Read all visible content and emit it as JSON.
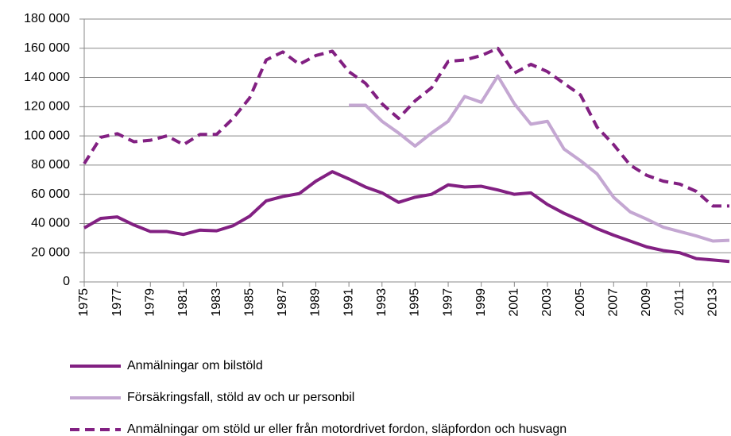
{
  "chart_data": {
    "type": "line",
    "x": [
      1975,
      1976,
      1977,
      1978,
      1979,
      1980,
      1981,
      1982,
      1983,
      1984,
      1985,
      1986,
      1987,
      1988,
      1989,
      1990,
      1991,
      1992,
      1993,
      1994,
      1995,
      1996,
      1997,
      1998,
      1999,
      2000,
      2001,
      2002,
      2003,
      2004,
      2005,
      2006,
      2007,
      2008,
      2009,
      2010,
      2011,
      2012,
      2013,
      2014
    ],
    "xlim": [
      1975,
      2014
    ],
    "xticks": [
      1975,
      1977,
      1979,
      1981,
      1983,
      1985,
      1987,
      1989,
      1991,
      1993,
      1995,
      1997,
      1999,
      2001,
      2003,
      2005,
      2007,
      2009,
      2011,
      2013
    ],
    "ylim": [
      0,
      180000
    ],
    "yticks": [
      0,
      {
        "value": 20000,
        "label": "20 000"
      },
      {
        "value": 40000,
        "label": "40 000"
      },
      {
        "value": 60000,
        "label": "60 000"
      },
      {
        "value": 80000,
        "label": "80 000"
      },
      {
        "value": 100000,
        "label": "100 000"
      },
      {
        "value": 120000,
        "label": "120 000"
      },
      {
        "value": 140000,
        "label": "140 000"
      },
      {
        "value": 160000,
        "label": "160 000"
      },
      {
        "value": 180000,
        "label": "180 000"
      }
    ],
    "grid": true,
    "legend": "bottom",
    "series": [
      {
        "name": "Anmälningar om bilstöld",
        "color": "#822082",
        "dash": false,
        "values": [
          37000,
          43500,
          44500,
          39000,
          34500,
          34500,
          32500,
          35500,
          35000,
          38500,
          45000,
          55500,
          58500,
          60500,
          69000,
          75500,
          70500,
          65000,
          61000,
          54500,
          58000,
          60000,
          66500,
          65000,
          65500,
          63000,
          60000,
          61000,
          53000,
          47000,
          42000,
          36500,
          32000,
          28000,
          24000,
          21500,
          20000,
          16000,
          15000,
          14000
        ]
      },
      {
        "name": "Försäkringsfall, stöld av och ur personbil",
        "color": "#c4a7d2",
        "dash": false,
        "values": [
          null,
          null,
          null,
          null,
          null,
          null,
          null,
          null,
          null,
          null,
          null,
          null,
          null,
          null,
          null,
          null,
          121000,
          121000,
          110000,
          102000,
          93000,
          102000,
          110000,
          127000,
          123000,
          141000,
          122000,
          108000,
          110000,
          91000,
          83000,
          74000,
          58000,
          48000,
          43000,
          37500,
          34500,
          31500,
          28000,
          28500
        ]
      },
      {
        "name": "Anmälningar om stöld ur eller från motordrivet fordon, släpfordon och husvagn",
        "color": "#822082",
        "dash": true,
        "values": [
          81000,
          99000,
          101500,
          96000,
          97000,
          100000,
          94000,
          101000,
          101000,
          112000,
          126000,
          152000,
          157500,
          149000,
          155000,
          158000,
          144000,
          136000,
          122000,
          112000,
          124000,
          133000,
          151000,
          152000,
          155000,
          160000,
          143000,
          149000,
          144000,
          136000,
          128000,
          106000,
          94000,
          80000,
          73000,
          69000,
          67000,
          62000,
          52000,
          52000
        ]
      }
    ]
  }
}
